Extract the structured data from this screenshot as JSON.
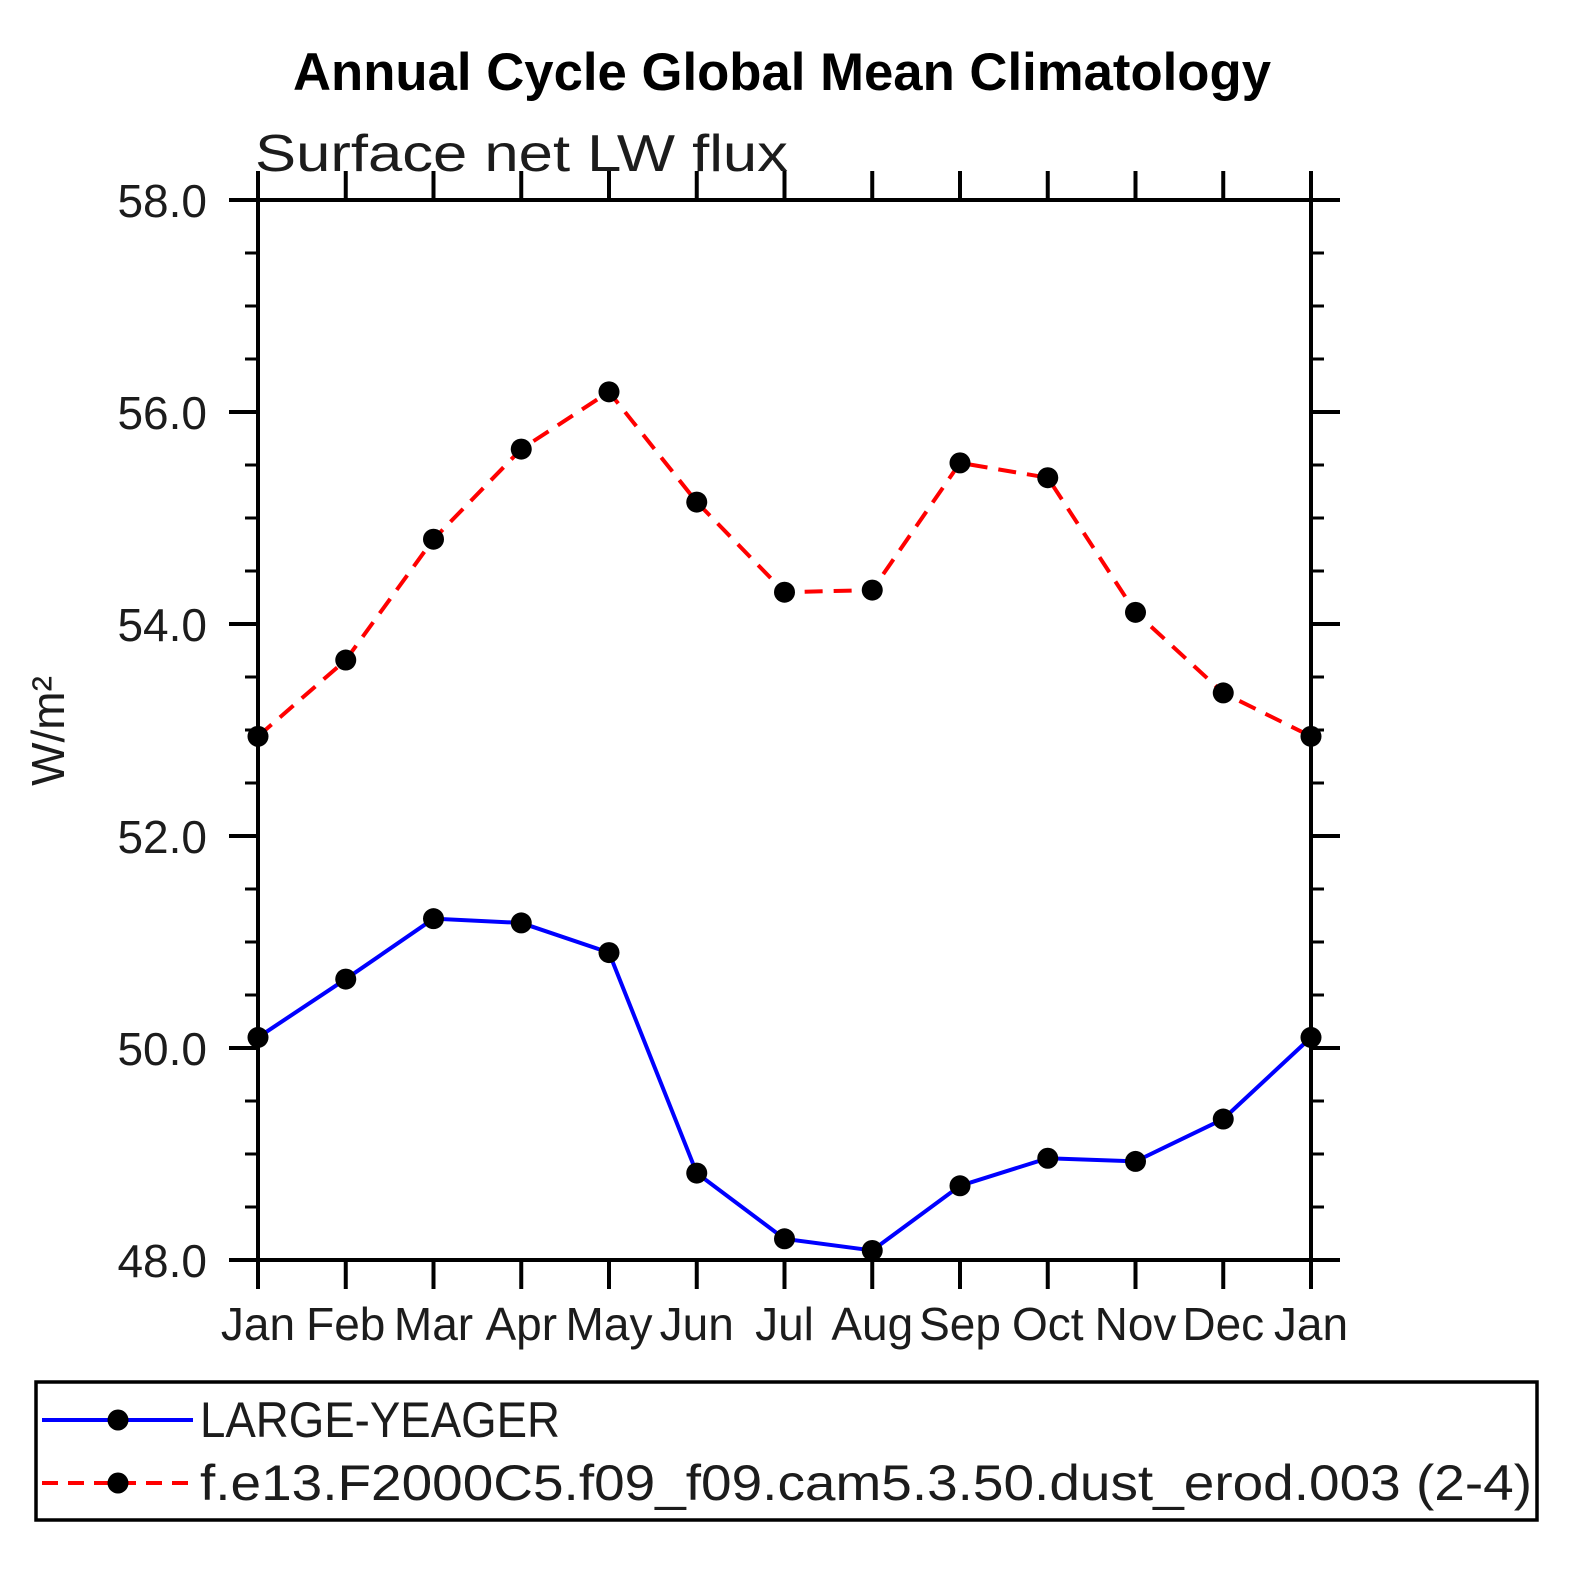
{
  "chart_data": {
    "type": "line",
    "title": "Annual Cycle Global Mean Climatology",
    "subtitle": "Surface net LW flux",
    "xlabel": "",
    "ylabel": "W/m²",
    "ylim": [
      48.0,
      58.0
    ],
    "ytick_step": 2.0,
    "ytick_minor_step": 0.5,
    "ytick_labels": [
      "48.0",
      "50.0",
      "52.0",
      "54.0",
      "56.0",
      "58.0"
    ],
    "categories": [
      "Jan",
      "Feb",
      "Mar",
      "Apr",
      "May",
      "Jun",
      "Jul",
      "Aug",
      "Sep",
      "Oct",
      "Nov",
      "Dec",
      "Jan"
    ],
    "grid": false,
    "legend_position": "bottom",
    "marker_color": "#000000",
    "axis_color": "#000000",
    "series": [
      {
        "name": "LARGE-YEAGER",
        "color": "#0000ff",
        "line_style": "solid",
        "values": [
          50.1,
          50.65,
          51.22,
          51.18,
          50.9,
          48.82,
          48.2,
          48.09,
          48.7,
          48.96,
          48.93,
          49.33,
          50.1
        ]
      },
      {
        "name": "f.e13.F2000C5.f09_f09.cam5.3.50.dust_erod.003 (2-4)",
        "color": "#ff0000",
        "line_style": "dashed",
        "values": [
          52.94,
          53.66,
          54.8,
          55.65,
          56.19,
          55.15,
          54.3,
          54.32,
          55.52,
          55.38,
          54.11,
          53.35,
          52.94
        ]
      }
    ]
  }
}
